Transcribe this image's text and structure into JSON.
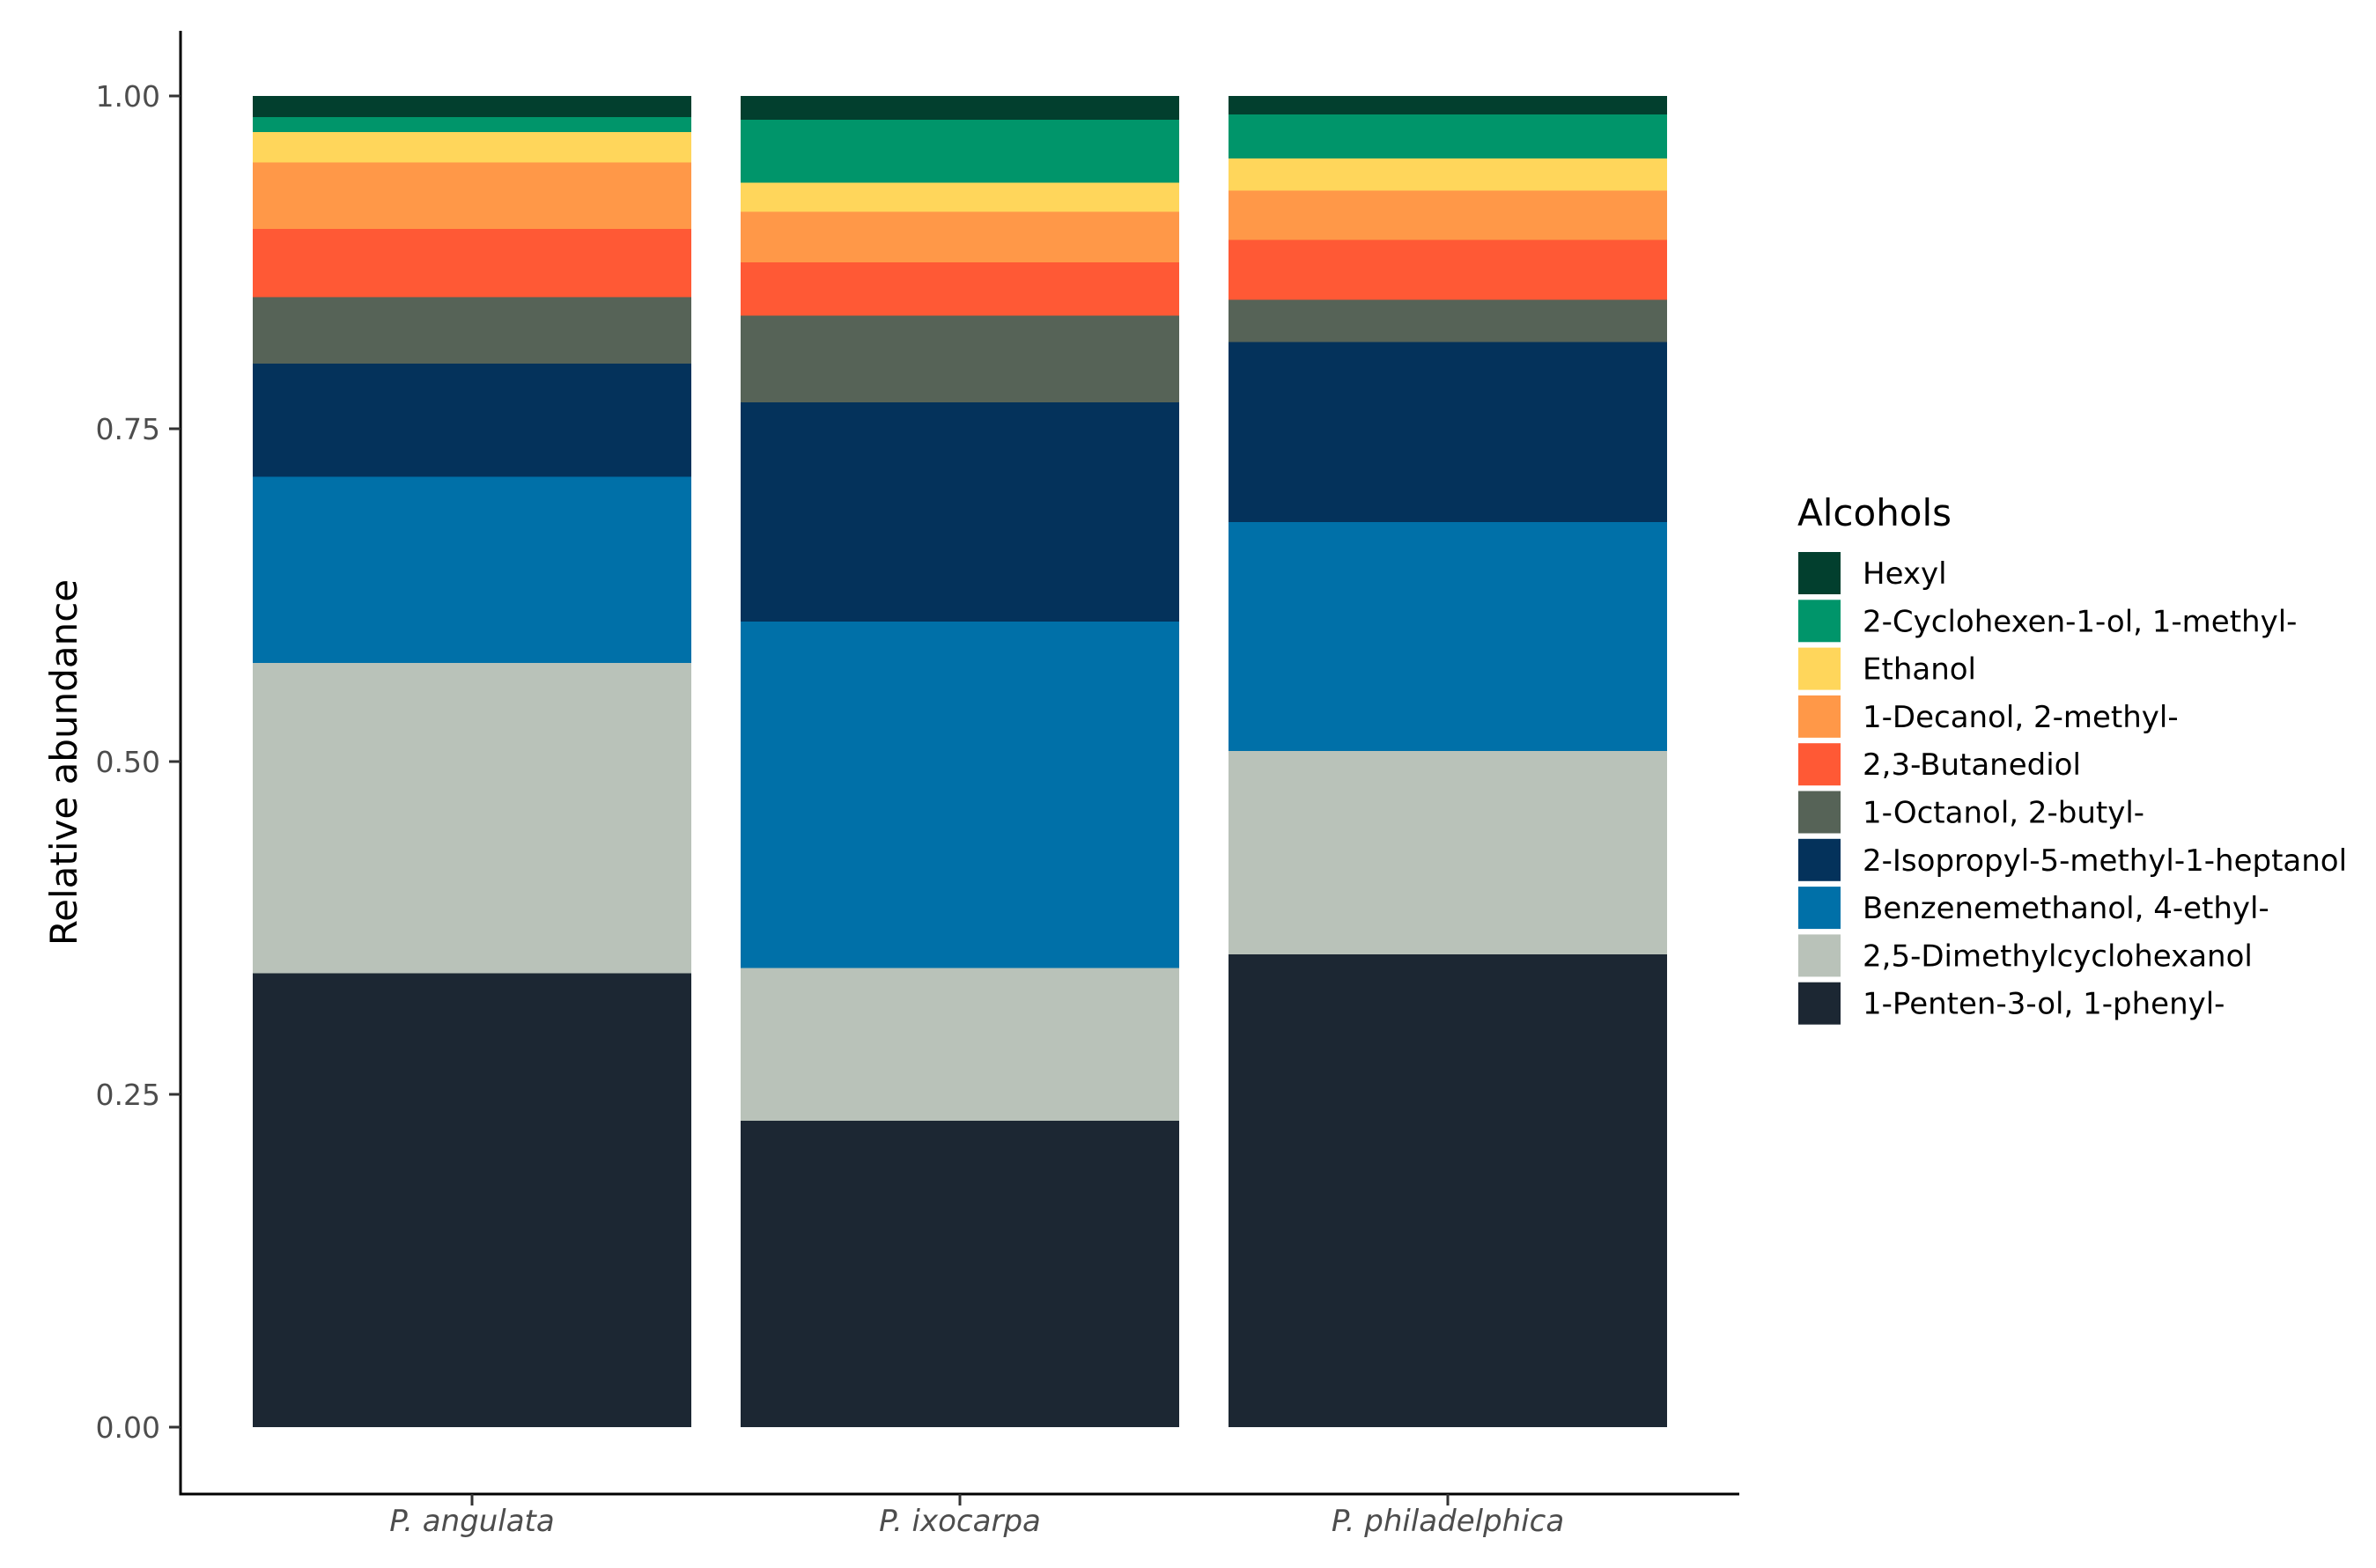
{
  "chart_data": {
    "type": "bar",
    "stacked": true,
    "title": "",
    "xlabel": "",
    "ylabel": "Relative abundance",
    "ylim": [
      0,
      1
    ],
    "y_ticks": [
      "0.00",
      "0.25",
      "0.50",
      "0.75",
      "1.00"
    ],
    "y_tick_values": [
      0,
      0.25,
      0.5,
      0.75,
      1.0
    ],
    "grid": false,
    "legend_position": "right",
    "legend_title": "Alcohols",
    "categories": [
      "P. angulata",
      "P. ixocarpa",
      "P. philadelphica"
    ],
    "series": [
      {
        "name": "1-Penten-3-ol, 1-phenyl-",
        "color": "#1c2733",
        "values": [
          0.341,
          0.23,
          0.355
        ]
      },
      {
        "name": "2,5-Dimethylcyclohexanol",
        "color": "#b9c2b9",
        "values": [
          0.233,
          0.115,
          0.153
        ]
      },
      {
        "name": "Benzenemethanol, 4-ethyl-",
        "color": "#0070a8",
        "values": [
          0.14,
          0.26,
          0.172
        ]
      },
      {
        "name": "2-Isopropyl-5-methyl-1-heptanol",
        "color": "#04325b",
        "values": [
          0.085,
          0.165,
          0.135
        ]
      },
      {
        "name": "1-Octanol, 2-butyl-",
        "color": "#566357",
        "values": [
          0.05,
          0.065,
          0.032
        ]
      },
      {
        "name": "2,3-Butanediol",
        "color": "#ff5935",
        "values": [
          0.051,
          0.04,
          0.045
        ]
      },
      {
        "name": "1-Decanol, 2-methyl-",
        "color": "#ff9848",
        "values": [
          0.05,
          0.038,
          0.037
        ]
      },
      {
        "name": "Ethanol",
        "color": "#ffd65b",
        "values": [
          0.023,
          0.022,
          0.024
        ]
      },
      {
        "name": "2-Cyclohexen-1-ol, 1-methyl-",
        "color": "#00956a",
        "values": [
          0.011,
          0.047,
          0.033
        ]
      },
      {
        "name": "Hexyl",
        "color": "#023f2e",
        "values": [
          0.016,
          0.018,
          0.014
        ]
      }
    ],
    "legend_order": [
      "Hexyl",
      "2-Cyclohexen-1-ol, 1-methyl-",
      "Ethanol",
      "1-Decanol, 2-methyl-",
      "2,3-Butanediol",
      "1-Octanol, 2-butyl-",
      "2-Isopropyl-5-methyl-1-heptanol",
      "Benzenemethanol, 4-ethyl-",
      "2,5-Dimethylcyclohexanol",
      "1-Penten-3-ol, 1-phenyl-"
    ]
  }
}
